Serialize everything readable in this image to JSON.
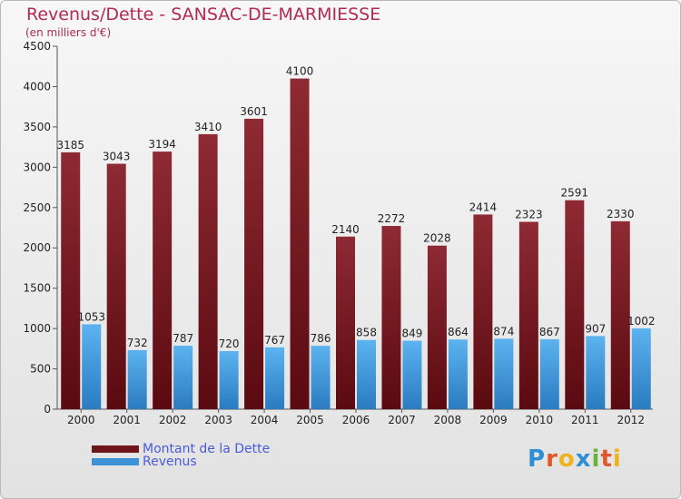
{
  "chart_data": {
    "type": "bar",
    "title": "Revenus/Dette - SANSAC-DE-MARMIESSE",
    "subtitle": "(en milliers d'€)",
    "categories": [
      "2000",
      "2001",
      "2002",
      "2003",
      "2004",
      "2005",
      "2006",
      "2007",
      "2008",
      "2009",
      "2010",
      "2011",
      "2012"
    ],
    "series": [
      {
        "name": "Montant de la Dette",
        "color": "#7a1c22",
        "values": [
          3185,
          3043,
          3194,
          3410,
          3601,
          4100,
          2140,
          2272,
          2028,
          2414,
          2323,
          2591,
          2330
        ]
      },
      {
        "name": "Revenus",
        "color": "#3d93d8",
        "values": [
          1053,
          732,
          787,
          720,
          767,
          786,
          858,
          849,
          864,
          874,
          867,
          907,
          1002
        ]
      }
    ],
    "ylim": [
      0,
      4500
    ],
    "yticks": [
      0,
      500,
      1000,
      1500,
      2000,
      2500,
      3000,
      3500,
      4000,
      4500
    ],
    "grid": false,
    "legend_position": "bottom-left"
  },
  "logo": {
    "letters": [
      {
        "char": "P",
        "color": "#2f8fd4"
      },
      {
        "char": "r",
        "color": "#e0582b"
      },
      {
        "char": "o",
        "color": "#f0b21a"
      },
      {
        "char": "x",
        "color": "#2f8fd4"
      },
      {
        "char": "i",
        "color": "#6cb23a"
      },
      {
        "char": "t",
        "color": "#e0582b"
      },
      {
        "char": "i",
        "color": "#f0b21a"
      }
    ]
  }
}
